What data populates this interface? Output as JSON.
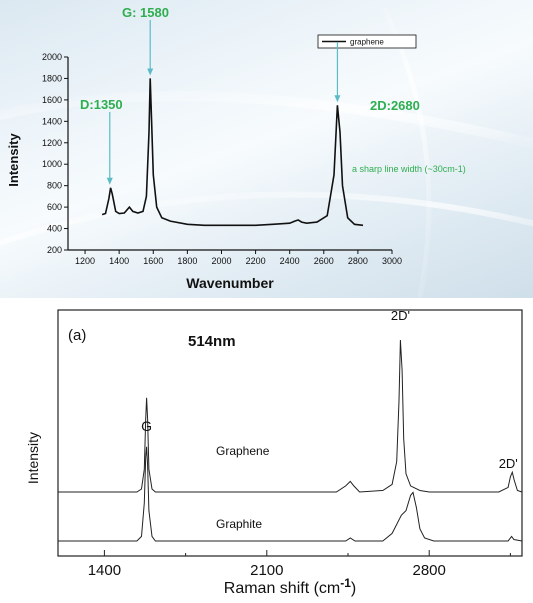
{
  "chart_data": [
    {
      "type": "line",
      "xlabel": "Wavenumber",
      "ylabel": "Intensity",
      "xlim": [
        1100,
        3000
      ],
      "ylim": [
        200,
        2000
      ],
      "xticks": [
        "1200",
        "1400",
        "1600",
        "1800",
        "2000",
        "2200",
        "2400",
        "2600",
        "2800",
        "3000"
      ],
      "yticks": [
        "200",
        "400",
        "600",
        "800",
        "1000",
        "1200",
        "1400",
        "1600",
        "1800",
        "2000"
      ],
      "legend": {
        "entries": [
          "graphene"
        ],
        "placement": "top-right"
      },
      "series": [
        {
          "name": "graphene",
          "points": [
            [
              1300,
              530
            ],
            [
              1320,
              540
            ],
            [
              1340,
              680
            ],
            [
              1350,
              780
            ],
            [
              1360,
              720
            ],
            [
              1380,
              560
            ],
            [
              1400,
              540
            ],
            [
              1430,
              545
            ],
            [
              1460,
              600
            ],
            [
              1480,
              560
            ],
            [
              1510,
              545
            ],
            [
              1540,
              560
            ],
            [
              1560,
              700
            ],
            [
              1575,
              1300
            ],
            [
              1582,
              1800
            ],
            [
              1590,
              1400
            ],
            [
              1600,
              900
            ],
            [
              1620,
              600
            ],
            [
              1650,
              500
            ],
            [
              1700,
              470
            ],
            [
              1800,
              440
            ],
            [
              1900,
              430
            ],
            [
              2000,
              430
            ],
            [
              2100,
              430
            ],
            [
              2200,
              430
            ],
            [
              2300,
              440
            ],
            [
              2400,
              450
            ],
            [
              2430,
              470
            ],
            [
              2450,
              480
            ],
            [
              2470,
              460
            ],
            [
              2500,
              450
            ],
            [
              2560,
              460
            ],
            [
              2620,
              520
            ],
            [
              2660,
              900
            ],
            [
              2680,
              1550
            ],
            [
              2695,
              1300
            ],
            [
              2710,
              800
            ],
            [
              2740,
              500
            ],
            [
              2780,
              440
            ],
            [
              2830,
              430
            ]
          ]
        }
      ],
      "annotations": [
        {
          "text": "D:1350",
          "x": 1350,
          "y": 780
        },
        {
          "text": "G: 1580",
          "x": 1582,
          "y": 1800
        },
        {
          "text": "2D:2680",
          "x": 2680,
          "y": 1550
        },
        {
          "text": "a sharp line width (~30cm-1)"
        }
      ],
      "colors": {
        "annotation": "#2fae4f",
        "arrow": "#5bbcc6",
        "line": "#111111"
      }
    },
    {
      "type": "line",
      "panel_label": "(a)",
      "title": "514nm",
      "xlabel": "Raman shift (cm",
      "xlabel_sup": "-1",
      "xlabel_tail": ")",
      "ylabel": "Intensity",
      "xlim": [
        1200,
        3200
      ],
      "xticks": [
        "1400",
        "2100",
        "2800"
      ],
      "xtick_values": [
        1400,
        2100,
        2800
      ],
      "peak_labels": [
        "G",
        "2D'",
        "2D'"
      ],
      "series": [
        {
          "name": "Graphene",
          "points": [
            [
              1200,
              0
            ],
            [
              1540,
              0
            ],
            [
              1560,
              0.02
            ],
            [
              1572,
              0.15
            ],
            [
              1578,
              0.48
            ],
            [
              1582,
              0.62
            ],
            [
              1586,
              0.48
            ],
            [
              1592,
              0.15
            ],
            [
              1605,
              0.02
            ],
            [
              1620,
              0
            ],
            [
              2400,
              0
            ],
            [
              2440,
              0.04
            ],
            [
              2460,
              0.07
            ],
            [
              2475,
              0.04
            ],
            [
              2500,
              0
            ],
            [
              2600,
              0.01
            ],
            [
              2640,
              0.05
            ],
            [
              2660,
              0.2
            ],
            [
              2670,
              0.6
            ],
            [
              2676,
              1.0
            ],
            [
              2683,
              0.8
            ],
            [
              2690,
              0.35
            ],
            [
              2700,
              0.12
            ],
            [
              2720,
              0.04
            ],
            [
              2760,
              0.01
            ],
            [
              2800,
              0
            ],
            [
              3100,
              0
            ],
            [
              3140,
              0.03
            ],
            [
              3150,
              0.1
            ],
            [
              3158,
              0.13
            ],
            [
              3166,
              0.08
            ],
            [
              3180,
              0.01
            ],
            [
              3200,
              0
            ]
          ]
        },
        {
          "name": "Graphite",
          "points": [
            [
              1200,
              0
            ],
            [
              1540,
              0
            ],
            [
              1560,
              0.03
            ],
            [
              1572,
              0.25
            ],
            [
              1578,
              0.55
            ],
            [
              1582,
              0.62
            ],
            [
              1586,
              0.5
            ],
            [
              1592,
              0.2
            ],
            [
              1605,
              0.03
            ],
            [
              1620,
              0
            ],
            [
              2440,
              0
            ],
            [
              2460,
              0.02
            ],
            [
              2480,
              0
            ],
            [
              2600,
              0
            ],
            [
              2640,
              0.05
            ],
            [
              2680,
              0.17
            ],
            [
              2700,
              0.2
            ],
            [
              2720,
              0.3
            ],
            [
              2730,
              0.32
            ],
            [
              2745,
              0.22
            ],
            [
              2760,
              0.08
            ],
            [
              2780,
              0.02
            ],
            [
              2820,
              0
            ],
            [
              3140,
              0
            ],
            [
              3155,
              0.03
            ],
            [
              3165,
              0.01
            ],
            [
              3200,
              0
            ]
          ]
        }
      ],
      "series_labels": [
        "Graphene",
        "Graphite"
      ]
    }
  ]
}
